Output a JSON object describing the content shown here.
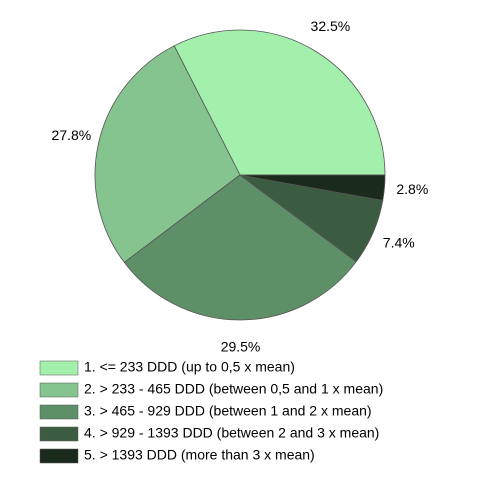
{
  "chart_data": {
    "type": "pie",
    "categories": [
      "1. <= 233 DDD (up to 0,5 x mean)",
      "2. > 233 - 465 DDD (between 0,5 and 1 x mean)",
      "3. > 465 - 929 DDD (between 1 and 2 x mean)",
      "4. > 929 - 1393 DDD (between 2 and 3 x mean)",
      "5. > 1393 DDD (more than 3 x mean)"
    ],
    "values": [
      32.5,
      27.8,
      29.5,
      7.4,
      2.8
    ],
    "value_labels": [
      "32.5%",
      "27.8%",
      "29.5%",
      "7.4%",
      "2.8%"
    ],
    "colors": [
      "#a3f0ad",
      "#85c48f",
      "#5e9068",
      "#3c5c41",
      "#1a2a1c"
    ]
  }
}
